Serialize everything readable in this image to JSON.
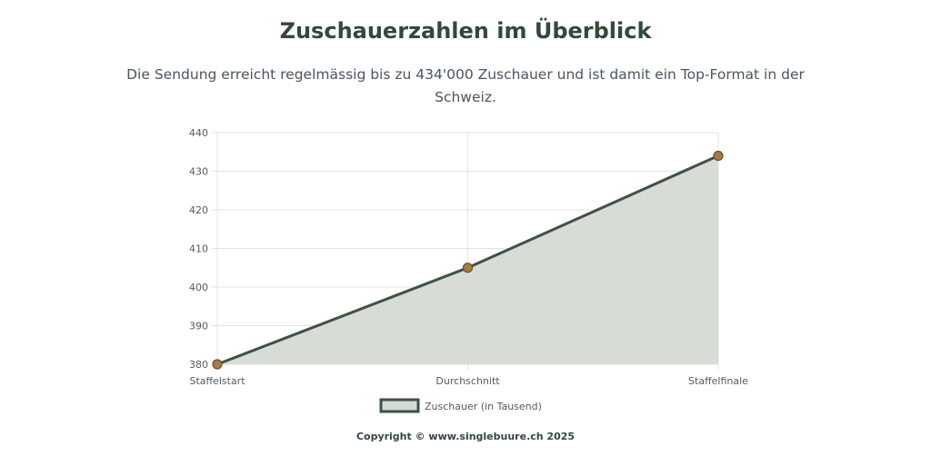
{
  "header": {
    "title": "Zuschauerzahlen im Überblick",
    "subtitle": "Die Sendung erreicht regelmässig bis zu 434'000 Zuschauer und ist damit ein Top-Format in der Schweiz."
  },
  "chart_data": {
    "type": "area",
    "categories": [
      "Staffelstart",
      "Durchschnitt",
      "Staffelfinale"
    ],
    "series": [
      {
        "name": "Zuschauer (in Tausend)",
        "values": [
          380,
          405,
          434
        ]
      }
    ],
    "yticks": [
      380,
      390,
      400,
      410,
      420,
      430,
      440
    ],
    "ylim": [
      380,
      440
    ],
    "grid": true,
    "legend": "bottom",
    "colors": {
      "line": "#3d5244",
      "fill": "#d5dad5",
      "point": "#a67c42",
      "point_stroke": "#6b5230",
      "grid": "#e3e3e3"
    }
  },
  "footer": {
    "copyright": "Copyright © www.singlebuure.ch 2025"
  }
}
